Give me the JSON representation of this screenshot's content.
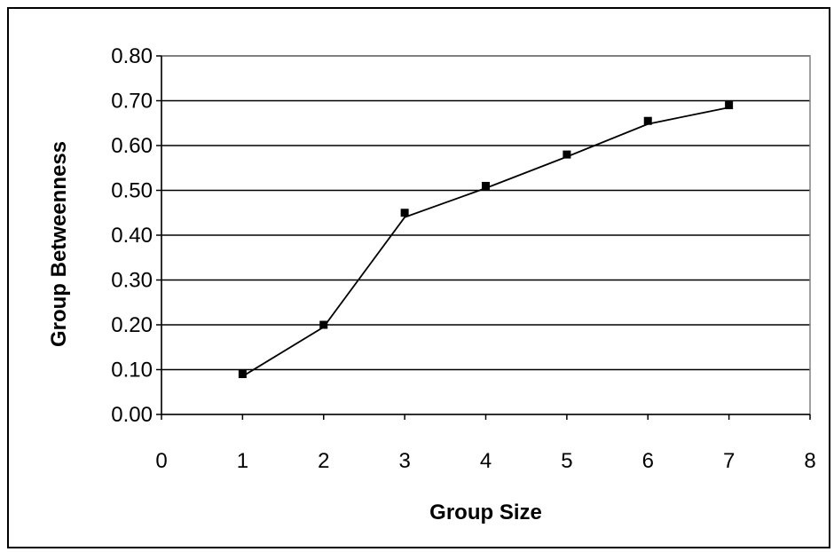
{
  "chart_data": {
    "type": "scatter",
    "title": "",
    "xlabel": "Group Size",
    "ylabel": "Group Betweenness",
    "xlim": [
      0,
      8
    ],
    "ylim": [
      0,
      0.8
    ],
    "x_ticks": [
      "0",
      "1",
      "2",
      "3",
      "4",
      "5",
      "6",
      "7",
      "8"
    ],
    "y_ticks": [
      "0.00",
      "0.10",
      "0.20",
      "0.30",
      "0.40",
      "0.50",
      "0.60",
      "0.70",
      "0.80"
    ],
    "grid": "horizontal",
    "legend": "none",
    "series": [
      {
        "kind": "points",
        "marker": "square",
        "x": [
          1,
          2,
          3,
          4,
          5,
          6,
          7
        ],
        "y": [
          0.09,
          0.2,
          0.45,
          0.51,
          0.58,
          0.655,
          0.69
        ]
      },
      {
        "kind": "fitted-line",
        "x": [
          1,
          2,
          3,
          4,
          5,
          6,
          7
        ],
        "y": [
          0.085,
          0.195,
          0.44,
          0.505,
          0.575,
          0.648,
          0.685
        ]
      }
    ],
    "colors": {
      "line": "#000000",
      "marker": "#000000",
      "grid": "#000000",
      "plot_border": "#808080",
      "background": "#ffffff"
    }
  }
}
